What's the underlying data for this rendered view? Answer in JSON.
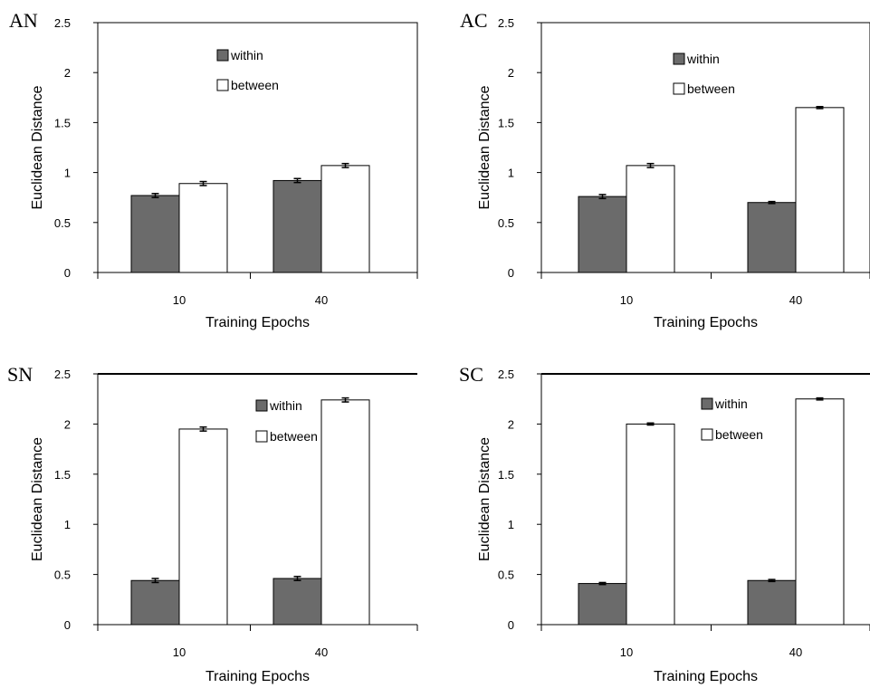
{
  "colors": {
    "within": "#6b6b6b",
    "between": "#ffffff",
    "stroke": "#000000"
  },
  "chart_data": [
    {
      "type": "bar",
      "panel_label": "AN",
      "categories": [
        "10",
        "40"
      ],
      "series": [
        {
          "name": "within",
          "values": [
            0.77,
            0.92
          ],
          "errors": [
            0.02,
            0.02
          ]
        },
        {
          "name": "between",
          "values": [
            0.89,
            1.07
          ],
          "errors": [
            0.02,
            0.02
          ]
        }
      ],
      "xlabel": "Training Epochs",
      "ylabel": "Euclidean Distance",
      "ylim": [
        0,
        2.5
      ],
      "yticks": [
        "0",
        "0.5",
        "1",
        "1.5",
        "2",
        "2.5"
      ],
      "legend_position": "top-center",
      "frame": "full box",
      "grid": false
    },
    {
      "type": "bar",
      "panel_label": "AC",
      "categories": [
        "10",
        "40"
      ],
      "series": [
        {
          "name": "within",
          "values": [
            0.76,
            0.7
          ],
          "errors": [
            0.02,
            0.01
          ]
        },
        {
          "name": "between",
          "values": [
            1.07,
            1.65
          ],
          "errors": [
            0.02,
            0.01
          ]
        }
      ],
      "xlabel": "Training Epochs",
      "ylabel": "Euclidean Distance",
      "ylim": [
        0,
        2.5
      ],
      "yticks": [
        "0",
        "0.5",
        "1",
        "1.5",
        "2",
        "2.5"
      ],
      "legend_position": "top-center",
      "frame": "full box",
      "grid": false
    },
    {
      "type": "bar",
      "panel_label": "SN",
      "categories": [
        "10",
        "40"
      ],
      "series": [
        {
          "name": "within",
          "values": [
            0.44,
            0.46
          ],
          "errors": [
            0.02,
            0.02
          ]
        },
        {
          "name": "between",
          "values": [
            1.95,
            2.24
          ],
          "errors": [
            0.02,
            0.02
          ]
        }
      ],
      "xlabel": "Training Epochs",
      "ylabel": "Euclidean Distance",
      "ylim": [
        0,
        2.5
      ],
      "yticks": [
        "0",
        "0.5",
        "1",
        "1.5",
        "2",
        "2.5"
      ],
      "legend_position": "top-right",
      "frame": "top and left",
      "grid": false
    },
    {
      "type": "bar",
      "panel_label": "SC",
      "categories": [
        "10",
        "40"
      ],
      "series": [
        {
          "name": "within",
          "values": [
            0.41,
            0.44
          ],
          "errors": [
            0.01,
            0.01
          ]
        },
        {
          "name": "between",
          "values": [
            2.0,
            2.25
          ],
          "errors": [
            0.01,
            0.01
          ]
        }
      ],
      "xlabel": "Training Epochs",
      "ylabel": "Euclidean Distance",
      "ylim": [
        0,
        2.5
      ],
      "yticks": [
        "0",
        "0.5",
        "1",
        "1.5",
        "2",
        "2.5"
      ],
      "legend_position": "top-right",
      "frame": "top and left",
      "grid": false
    }
  ]
}
